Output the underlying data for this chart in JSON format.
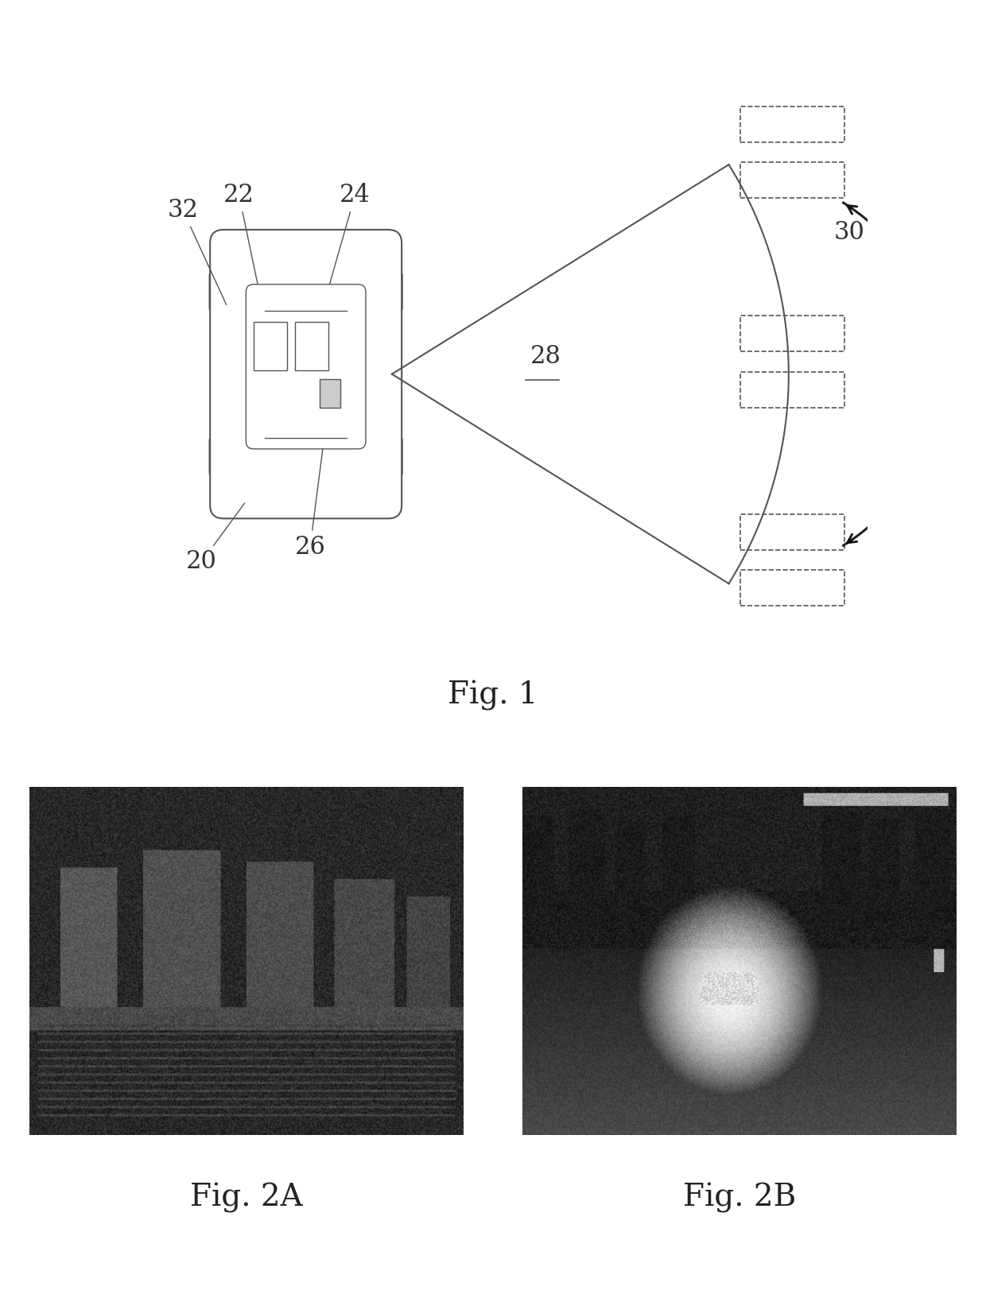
{
  "fig1_label": "Fig. 1",
  "fig2a_label": "Fig. 2A",
  "fig2b_label": "Fig. 2B",
  "background_color": "#ffffff",
  "line_color": "#555555",
  "label_color": "#333333",
  "fig_label_fontsize": 28,
  "annotation_fontsize": 22,
  "page_width": 12.4,
  "page_height": 16.23
}
